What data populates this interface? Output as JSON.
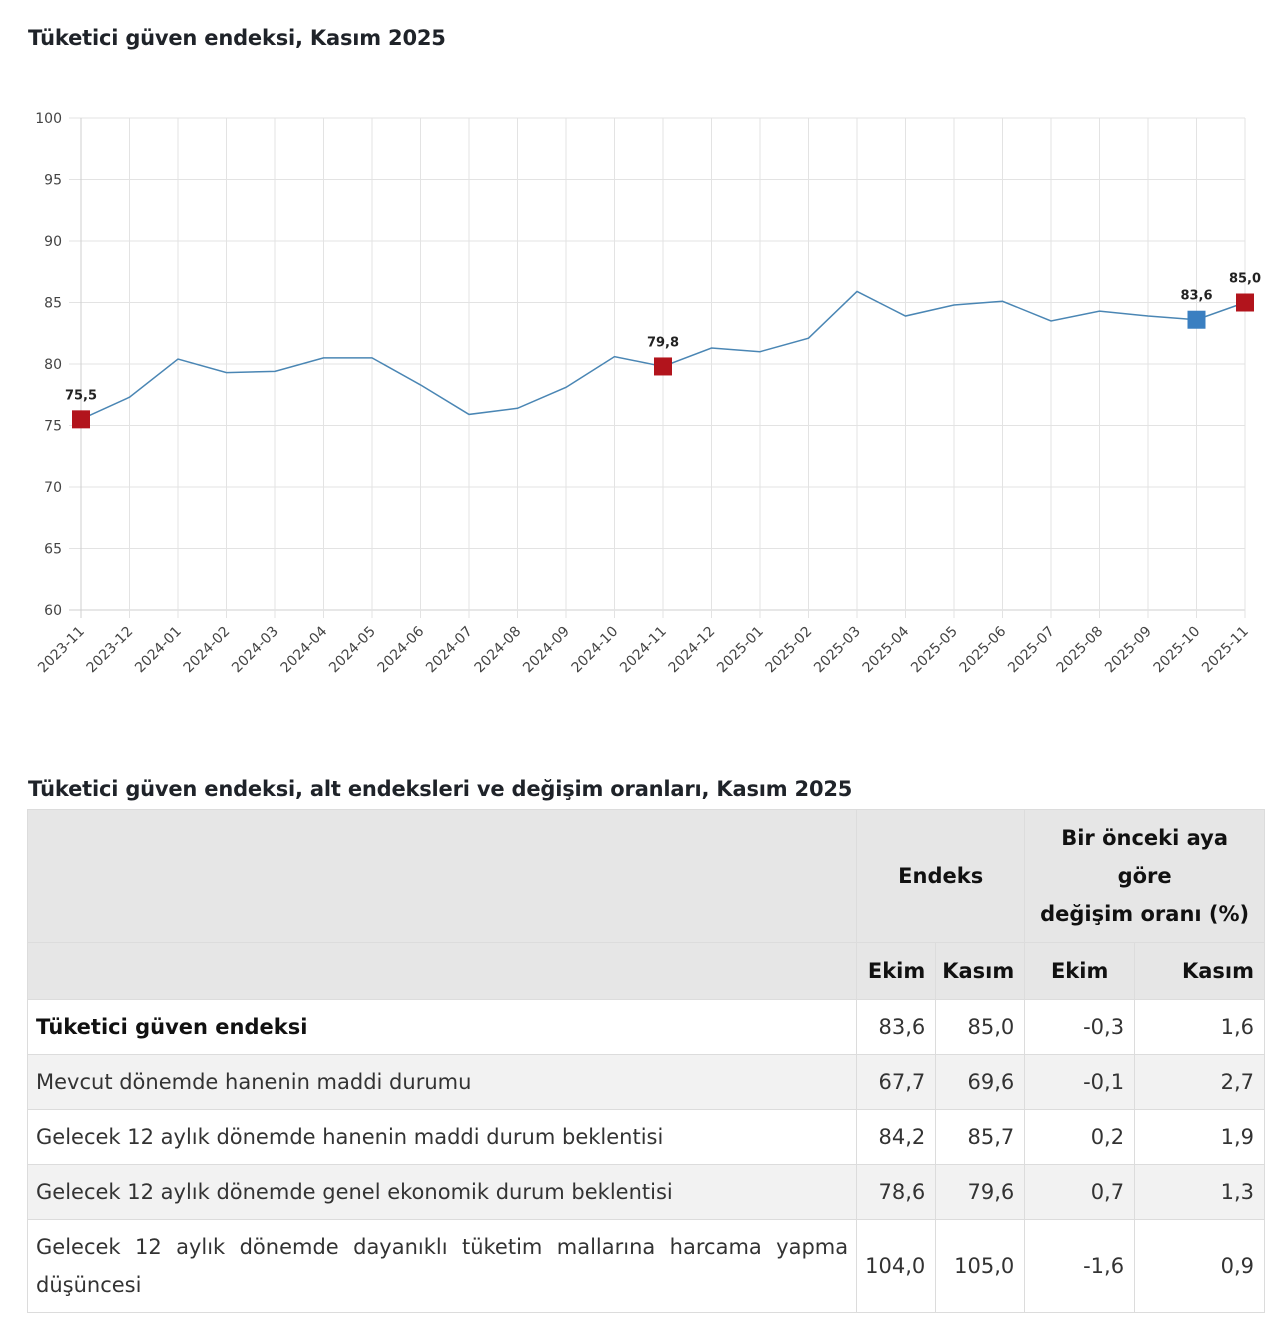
{
  "chart_title": "Tüketici güven endeksi, Kasım 2025",
  "table_title": "Tüketici güven endeksi, alt endeksleri ve değişim oranları, Kasım 2025",
  "colors": {
    "line": "#4a86b4",
    "highlight_red": "#b2141c",
    "highlight_blue": "#3a7fc1",
    "grid": "#e3e3e3",
    "header_bg": "#e6e6e6"
  },
  "chart_data": {
    "type": "line",
    "title": "Tüketici güven endeksi, Kasım 2025",
    "xlabel": "",
    "ylabel": "",
    "ylim": [
      60,
      100
    ],
    "yticks": [
      60,
      65,
      70,
      75,
      80,
      85,
      90,
      95,
      100
    ],
    "grid": true,
    "legend": "none",
    "categories": [
      "2023-11",
      "2023-12",
      "2024-01",
      "2024-02",
      "2024-03",
      "2024-04",
      "2024-05",
      "2024-06",
      "2024-07",
      "2024-08",
      "2024-09",
      "2024-10",
      "2024-11",
      "2024-12",
      "2025-01",
      "2025-02",
      "2025-03",
      "2025-04",
      "2025-05",
      "2025-06",
      "2025-07",
      "2025-08",
      "2025-09",
      "2025-10",
      "2025-11"
    ],
    "series": [
      {
        "name": "Tüketici güven endeksi",
        "values": [
          75.5,
          77.3,
          80.4,
          79.3,
          79.4,
          80.5,
          80.5,
          78.3,
          75.9,
          76.4,
          78.1,
          80.6,
          79.8,
          81.3,
          81.0,
          82.1,
          85.9,
          83.9,
          84.8,
          85.1,
          83.5,
          84.3,
          83.9,
          83.6,
          85.0
        ]
      }
    ],
    "highlights": [
      {
        "category": "2023-11",
        "value": 75.5,
        "label": "75,5",
        "color": "red"
      },
      {
        "category": "2024-11",
        "value": 79.8,
        "label": "79,8",
        "color": "red"
      },
      {
        "category": "2025-10",
        "value": 83.6,
        "label": "83,6",
        "color": "blue"
      },
      {
        "category": "2025-11",
        "value": 85.0,
        "label": "85,0",
        "color": "red"
      }
    ]
  },
  "table": {
    "header_top": {
      "empty": "",
      "endeks": "Endeks",
      "change_line1": "Bir önceki aya",
      "change_line2": "göre",
      "change_line3": "değişim oranı (%)"
    },
    "header_sub": [
      "Ekim",
      "Kasım",
      "Ekim",
      "Kasım"
    ],
    "rows": [
      {
        "label": "Tüketici güven endeksi",
        "endeks_ekim": "83,6",
        "endeks_kasim": "85,0",
        "degisim_ekim": "-0,3",
        "degisim_kasim": "1,6"
      },
      {
        "label": "Mevcut dönemde hanenin maddi durumu",
        "endeks_ekim": "67,7",
        "endeks_kasim": "69,6",
        "degisim_ekim": "-0,1",
        "degisim_kasim": "2,7"
      },
      {
        "label": "Gelecek 12 aylık dönemde hanenin maddi durum beklentisi",
        "endeks_ekim": "84,2",
        "endeks_kasim": "85,7",
        "degisim_ekim": "0,2",
        "degisim_kasim": "1,9"
      },
      {
        "label": "Gelecek 12 aylık dönemde genel ekonomik durum beklentisi",
        "endeks_ekim": "78,6",
        "endeks_kasim": "79,6",
        "degisim_ekim": "0,7",
        "degisim_kasim": "1,3"
      },
      {
        "label": "Gelecek 12 aylık dönemde dayanıklı tüketim mallarına harcama yapma düşüncesi",
        "endeks_ekim": "104,0",
        "endeks_kasim": "105,0",
        "degisim_ekim": "-1,6",
        "degisim_kasim": "0,9"
      }
    ]
  }
}
